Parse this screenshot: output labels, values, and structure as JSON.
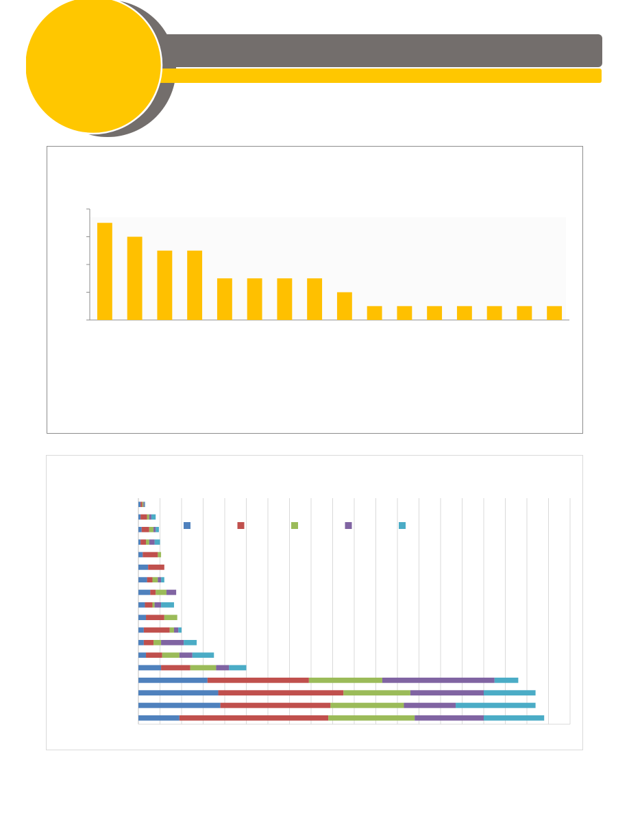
{
  "colors": {
    "accent_yellow": "#FFC700",
    "header_gray": "#736E6C",
    "series_colors": [
      "#4F81BD",
      "#C0504D",
      "#9BBB59",
      "#8064A2",
      "#4BACC6"
    ]
  },
  "chart_data": [
    {
      "type": "bar",
      "orientation": "vertical",
      "series": [
        {
          "color": "#FFC000",
          "values": [
            7,
            6,
            5,
            5,
            3,
            3,
            3,
            3,
            2,
            1,
            1,
            1,
            1,
            1,
            1,
            1
          ]
        }
      ],
      "ylim": [
        0,
        8
      ],
      "y_ticks": [
        0,
        2,
        4,
        6,
        8
      ],
      "grid": false,
      "title": "",
      "xlabel": "",
      "ylabel": ""
    },
    {
      "type": "bar",
      "orientation": "horizontal",
      "stacked": true,
      "series": [
        {
          "color": "#4F81BD",
          "values": [
            19,
            38,
            37,
            32,
            10.5,
            3.5,
            2.5,
            2.5,
            3.5,
            3,
            5.5,
            4,
            4.5,
            2,
            1,
            1.5,
            1,
            1
          ]
        },
        {
          "color": "#C0504D",
          "values": [
            69,
            51,
            58,
            47,
            13.5,
            7.5,
            4.5,
            12,
            8.5,
            3.5,
            2.5,
            2.5,
            7.5,
            7,
            2.5,
            3.5,
            3,
            0.8
          ]
        },
        {
          "color": "#9BBB59",
          "values": [
            40,
            34,
            31,
            34,
            12,
            8,
            3.5,
            2,
            6,
            1,
            5,
            2.5,
            0,
            1.5,
            1.5,
            2,
            1,
            0.5
          ]
        },
        {
          "color": "#8064A2",
          "values": [
            32,
            24,
            34,
            52,
            6,
            6,
            10.5,
            2,
            0,
            3,
            4.5,
            1.5,
            0,
            0,
            2.5,
            1,
            1,
            0.5
          ]
        },
        {
          "color": "#4BACC6",
          "values": [
            28,
            37,
            24,
            11,
            8,
            10,
            6,
            1.5,
            0,
            6,
            0,
            1.5,
            0,
            0,
            2.5,
            1.5,
            2,
            0.3
          ]
        }
      ],
      "xlim": [
        0,
        200
      ],
      "x_grid_step": 10,
      "grid": true,
      "legend": "top",
      "title": "",
      "xlabel": "",
      "ylabel": ""
    }
  ]
}
